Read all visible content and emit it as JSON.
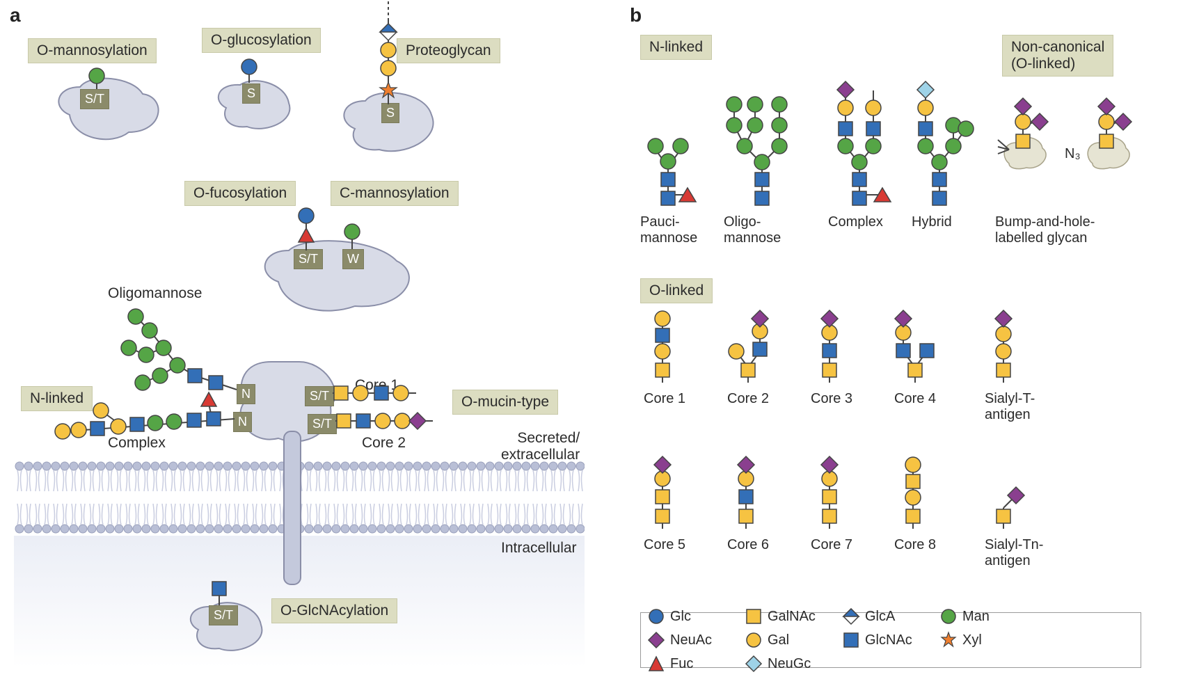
{
  "panel_a_letter": "a",
  "panel_b_letter": "b",
  "panel_a": {
    "o_mannosylation": "O-mannosylation",
    "o_glucosylation": "O-glucosylation",
    "proteoglycan": "Proteoglycan",
    "o_fucosylation": "O-fucosylation",
    "c_mannosylation": "C-mannosylation",
    "n_linked": "N-linked",
    "o_mucin": "O-mucin-type",
    "o_glcnac": "O-GlcNAcylation",
    "oligomannose": "Oligomannose",
    "complex": "Complex",
    "core1": "Core 1",
    "core2": "Core 2",
    "secreted": "Secreted/\nextracellular",
    "intracellular": "Intracellular",
    "aa_st": "S/T",
    "aa_s": "S",
    "aa_w": "W",
    "aa_n": "N"
  },
  "panel_b": {
    "n_linked": "N-linked",
    "o_linked": "O-linked",
    "noncanonical": "Non-canonical\n(O-linked)",
    "pauci": "Pauci-\nmannose",
    "oligo": "Oligo-\nmannose",
    "complex": "Complex",
    "hybrid": "Hybrid",
    "bumpandhole": "Bump-and-hole-\nlabelled glycan",
    "n3": "N₃",
    "core1": "Core 1",
    "core2": "Core 2",
    "core3": "Core 3",
    "core4": "Core 4",
    "sialylT": "Sialyl-T-\nantigen",
    "core5": "Core 5",
    "core6": "Core 6",
    "core7": "Core 7",
    "core8": "Core 8",
    "sialylTn": "Sialyl-Tn-\nantigen"
  },
  "legend": {
    "Glc": "Glc",
    "Gal": "Gal",
    "GalNAc": "GalNAc",
    "GlcNAc": "GlcNAc",
    "GlcA": "GlcA",
    "Xyl": "Xyl",
    "Man": "Man",
    "Fuc": "Fuc",
    "NeuAc": "NeuAc",
    "NeuGc": "NeuGc"
  },
  "colors": {
    "Glc": "#336fb7",
    "Gal": "#f6c342",
    "GalNAc_fill": "#f6c342",
    "GlcNAc": "#336fb7",
    "GlcA_top": "#336fb7",
    "GlcA_bot": "#ffffff",
    "Xyl": "#f07f2e",
    "Man": "#55a546",
    "Fuc": "#d83a34",
    "NeuAc": "#8a3f8f",
    "NeuGc": "#9ed3e8",
    "stroke": "#444444",
    "protein_fill": "#d8dbe7",
    "protein_stroke": "#8a8ea8",
    "box_bg": "#dcddc1",
    "aa_bg": "#8b8b6a",
    "membrane_head": "#b9bfd6",
    "membrane_tail": "#c9cde0"
  },
  "sizes": {
    "glyph_r": 11,
    "font_panel_letter": 28,
    "font_label": 21,
    "font_small": 20
  }
}
